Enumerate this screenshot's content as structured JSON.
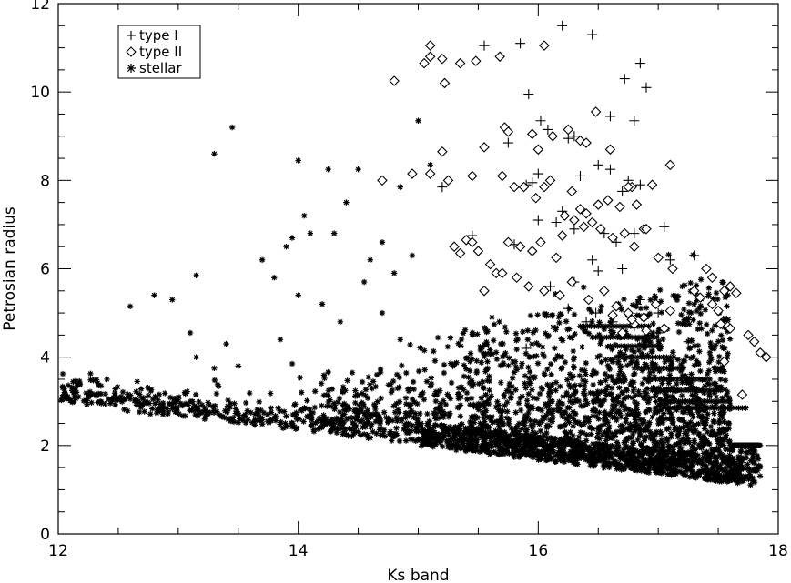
{
  "chart_data": {
    "type": "scatter",
    "xlabel": "Ks band",
    "ylabel": "Petrosian radius",
    "xlim": [
      12,
      18
    ],
    "ylim": [
      0,
      12
    ],
    "xticks": [
      "12",
      "14",
      "16",
      "18"
    ],
    "yticks": [
      "0",
      "2",
      "4",
      "6",
      "8",
      "10",
      "12"
    ],
    "grid": false,
    "legend_position": "top-left",
    "legend": [
      {
        "label": "type I",
        "marker": "plus"
      },
      {
        "label": "type II",
        "marker": "diamond"
      },
      {
        "label": "stellar",
        "marker": "asterisk"
      }
    ],
    "series": [
      {
        "name": "type I",
        "marker": "plus",
        "x": [
          15.55,
          15.85,
          15.92,
          16.02,
          16.08,
          16.2,
          16.25,
          16.3,
          16.45,
          16.6,
          16.72,
          16.8,
          16.85,
          16.9,
          15.75,
          15.9,
          15.95,
          16.0,
          16.1,
          16.2,
          16.35,
          16.5,
          16.6,
          16.7,
          16.75,
          16.85,
          15.2,
          15.45,
          15.8,
          16.0,
          16.15,
          16.3,
          16.45,
          16.55,
          16.65,
          16.8,
          16.9,
          17.05,
          16.1,
          16.3,
          16.5,
          16.7,
          16.82,
          17.0,
          17.1,
          17.3,
          16.25,
          16.48,
          16.62,
          16.8,
          17.0,
          17.25,
          15.6,
          15.9,
          16.4,
          16.85
        ],
        "y": [
          11.05,
          11.1,
          9.95,
          9.35,
          9.15,
          11.5,
          8.95,
          9.0,
          11.3,
          9.45,
          10.3,
          9.35,
          10.65,
          10.1,
          8.85,
          7.9,
          7.95,
          8.15,
          8.0,
          7.3,
          8.1,
          8.35,
          8.25,
          7.75,
          8.0,
          7.9,
          7.85,
          6.75,
          6.55,
          7.1,
          7.05,
          6.9,
          6.2,
          6.8,
          6.6,
          6.8,
          6.9,
          6.95,
          5.6,
          5.7,
          5.95,
          6.0,
          5.2,
          5.0,
          6.2,
          6.3,
          5.1,
          5.0,
          4.8,
          4.7,
          4.55,
          4.35,
          4.1,
          4.2,
          4.8,
          5.3
        ]
      },
      {
        "name": "type II",
        "marker": "diamond",
        "x": [
          15.1,
          15.05,
          15.1,
          15.2,
          15.35,
          15.48,
          15.68,
          16.05,
          14.8,
          15.1,
          15.2,
          15.22,
          15.4,
          15.5,
          15.45,
          15.72,
          15.75,
          15.95,
          16.0,
          16.12,
          16.25,
          16.35,
          16.4,
          16.48,
          16.6,
          16.78,
          16.95,
          17.1,
          14.7,
          14.95,
          15.25,
          15.45,
          15.55,
          15.7,
          15.8,
          15.88,
          15.98,
          16.05,
          16.1,
          16.2,
          16.28,
          16.35,
          16.4,
          16.5,
          16.58,
          16.68,
          16.75,
          16.82,
          16.88,
          15.3,
          15.35,
          15.55,
          15.65,
          15.75,
          15.85,
          15.95,
          16.02,
          16.15,
          16.22,
          16.3,
          16.38,
          16.45,
          16.52,
          16.62,
          16.72,
          16.8,
          16.9,
          17.0,
          17.12,
          15.6,
          15.7,
          15.82,
          15.92,
          16.05,
          16.18,
          16.28,
          16.42,
          16.55,
          16.65,
          16.75,
          16.88,
          16.98,
          17.1,
          17.3,
          17.35,
          17.45,
          17.5,
          17.55,
          17.6,
          17.65,
          17.4,
          17.45,
          17.52,
          17.58,
          17.6,
          17.75,
          17.8,
          17.85,
          17.9,
          17.55,
          17.7,
          16.7,
          16.8,
          16.9,
          17.05,
          16.78,
          16.62
        ],
        "y": [
          11.05,
          10.65,
          10.8,
          10.75,
          10.65,
          10.7,
          10.8,
          11.05,
          10.25,
          8.15,
          8.65,
          10.2,
          6.65,
          6.4,
          8.1,
          9.2,
          9.1,
          9.05,
          8.7,
          9.0,
          9.15,
          8.9,
          8.85,
          9.55,
          8.7,
          7.85,
          7.9,
          8.35,
          8.0,
          8.15,
          8.0,
          6.6,
          8.75,
          8.1,
          7.85,
          7.85,
          7.6,
          7.85,
          8.0,
          6.75,
          7.75,
          7.35,
          7.25,
          7.45,
          7.55,
          7.4,
          7.85,
          7.45,
          6.9,
          6.5,
          6.35,
          5.5,
          5.9,
          6.6,
          6.5,
          6.4,
          6.6,
          6.25,
          7.2,
          7.1,
          6.95,
          7.05,
          6.9,
          6.7,
          6.8,
          6.5,
          6.9,
          6.25,
          6.0,
          6.1,
          5.9,
          5.8,
          5.6,
          5.5,
          5.4,
          5.7,
          5.3,
          5.5,
          5.15,
          5.0,
          4.9,
          5.2,
          5.05,
          5.5,
          5.35,
          5.2,
          5.05,
          5.5,
          5.6,
          5.45,
          6.0,
          5.8,
          4.75,
          4.7,
          4.65,
          4.5,
          4.35,
          4.1,
          4.0,
          3.9,
          3.15,
          4.55,
          4.75,
          4.6,
          4.65,
          4.85,
          4.95
        ]
      },
      {
        "name": "stellar",
        "marker": "asterisk",
        "description_generation": "dense cloud",
        "points": [
          [
            12.6,
            5.15
          ],
          [
            12.8,
            5.4
          ],
          [
            12.95,
            5.3
          ],
          [
            13.1,
            4.55
          ],
          [
            13.15,
            5.85
          ],
          [
            13.3,
            8.6
          ],
          [
            13.45,
            9.2
          ],
          [
            13.3,
            3.75
          ],
          [
            13.4,
            4.3
          ],
          [
            13.15,
            4.0
          ],
          [
            13.5,
            3.8
          ],
          [
            13.7,
            6.2
          ],
          [
            13.8,
            5.8
          ],
          [
            13.9,
            6.5
          ],
          [
            13.95,
            6.7
          ],
          [
            14.0,
            8.45
          ],
          [
            14.05,
            7.2
          ],
          [
            14.1,
            6.8
          ],
          [
            14.25,
            8.25
          ],
          [
            14.3,
            6.8
          ],
          [
            14.4,
            7.5
          ],
          [
            14.5,
            8.25
          ],
          [
            14.55,
            5.7
          ],
          [
            14.6,
            6.2
          ],
          [
            14.7,
            6.6
          ],
          [
            14.8,
            5.9
          ],
          [
            14.85,
            7.85
          ],
          [
            14.95,
            6.3
          ],
          [
            15.0,
            9.35
          ],
          [
            15.1,
            8.35
          ],
          [
            14.0,
            5.4
          ],
          [
            13.85,
            4.4
          ],
          [
            13.95,
            3.85
          ],
          [
            14.2,
            5.2
          ],
          [
            14.35,
            4.8
          ],
          [
            14.45,
            3.65
          ],
          [
            14.7,
            5.0
          ],
          [
            14.85,
            4.4
          ]
        ]
      }
    ]
  }
}
